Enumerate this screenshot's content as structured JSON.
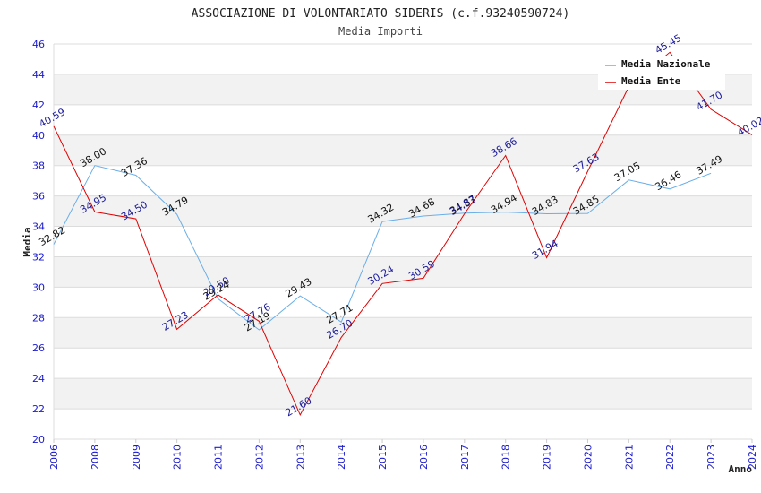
{
  "chart_data": {
    "type": "line",
    "title": "ASSOCIAZIONE DI VOLONTARIATO SIDERIS (c.f.93240590724)",
    "subtitle": "Media Importi",
    "xlabel": "Anno",
    "ylabel": "Media",
    "ylim": [
      20,
      46
    ],
    "yticks": [
      20,
      22,
      24,
      26,
      28,
      30,
      32,
      34,
      36,
      38,
      40,
      42,
      44,
      46
    ],
    "categories": [
      "2006",
      "2008",
      "2009",
      "2010",
      "2011",
      "2012",
      "2013",
      "2014",
      "2015",
      "2016",
      "2017",
      "2018",
      "2019",
      "2020",
      "2021",
      "2022",
      "2023",
      "2024"
    ],
    "legend_position": "top-right",
    "series": [
      {
        "name": "Media Nazionale",
        "color": "#6aaee8",
        "label_color": "#111111",
        "values": [
          32.82,
          38.0,
          37.36,
          34.79,
          29.24,
          27.19,
          29.43,
          27.71,
          34.32,
          34.68,
          34.87,
          34.94,
          34.83,
          34.85,
          37.05,
          36.46,
          37.49,
          null
        ],
        "labels": [
          "32.82",
          "38.00",
          "37.36",
          "34.79",
          "29.24",
          "27.19",
          "29.43",
          "27.71",
          "34.32",
          "34.68",
          "34.87",
          "34.94",
          "34.83",
          "34.85",
          "37.05",
          "36.46",
          "37.49",
          ""
        ]
      },
      {
        "name": "Media Ente",
        "color": "#e00000",
        "label_color": "#1a1a99",
        "values": [
          40.59,
          34.95,
          34.5,
          27.23,
          29.5,
          27.76,
          21.6,
          26.7,
          30.24,
          30.59,
          34.83,
          38.66,
          31.94,
          37.63,
          43.2,
          45.45,
          41.7,
          40.02
        ],
        "labels": [
          "40.59",
          "34.95",
          "34.50",
          "27.23",
          "29.50",
          "27.76",
          "21.60",
          "26.70",
          "30.24",
          "30.59",
          "34.83",
          "38.66",
          "31.94",
          "37.63",
          "",
          "45.45",
          "41.70",
          "40.02"
        ]
      }
    ]
  }
}
